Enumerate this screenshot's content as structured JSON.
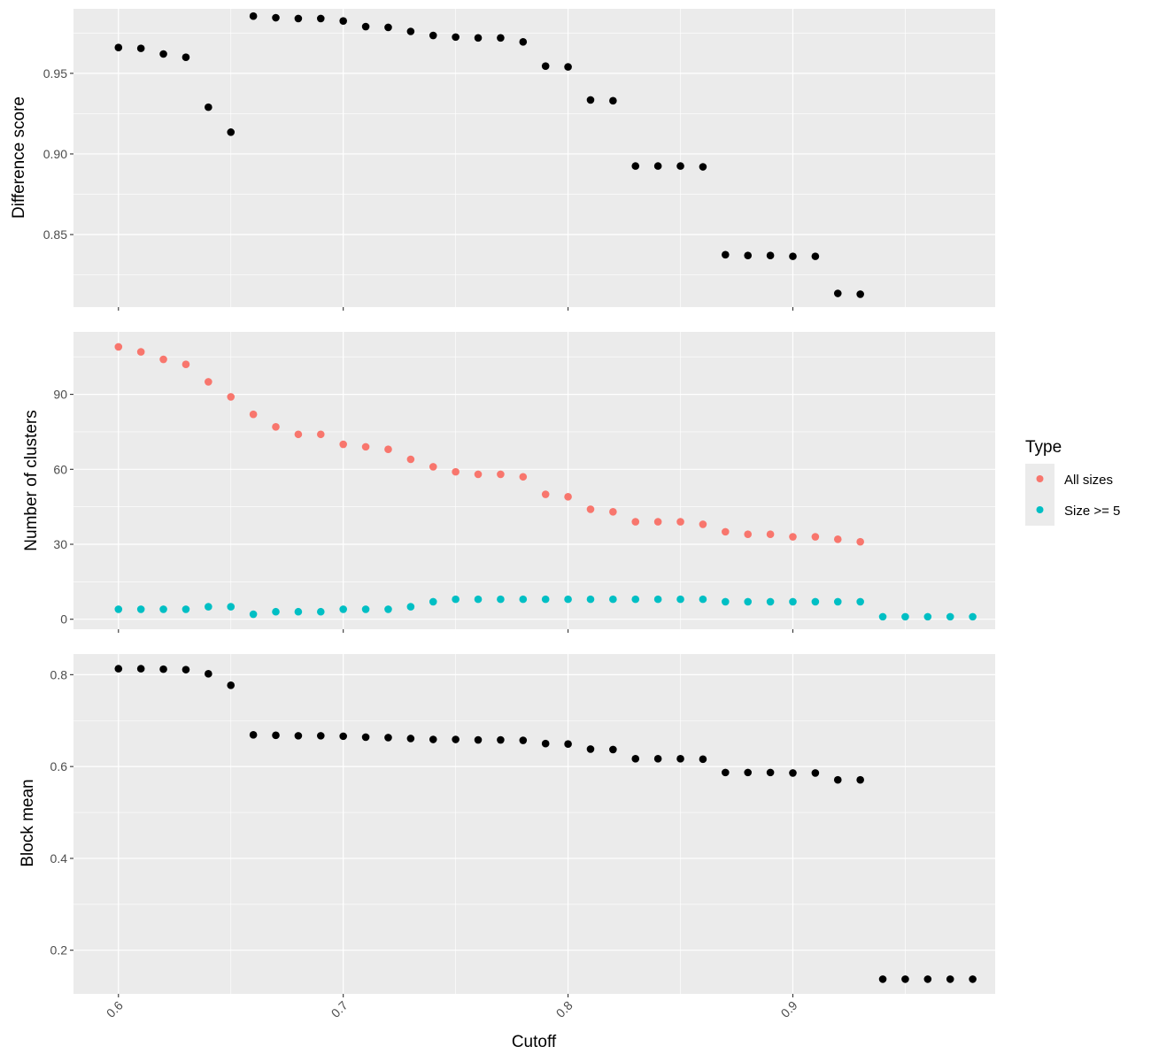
{
  "chart_data": [
    {
      "type": "scatter",
      "title": "",
      "xlabel": "Cutoff",
      "ylabel": "Difference score",
      "xlim": [
        0.58,
        0.99
      ],
      "ylim": [
        0.805,
        0.99
      ],
      "yticks": [
        "0.85",
        "0.90",
        "0.95"
      ],
      "grid": true,
      "series": [
        {
          "color": "#000000",
          "points": [
            [
              0.6,
              0.966
            ],
            [
              0.61,
              0.9655
            ],
            [
              0.62,
              0.962
            ],
            [
              0.63,
              0.96
            ],
            [
              0.64,
              0.929
            ],
            [
              0.65,
              0.9135
            ],
            [
              0.66,
              0.9855
            ],
            [
              0.67,
              0.9845
            ],
            [
              0.68,
              0.984
            ],
            [
              0.69,
              0.984
            ],
            [
              0.7,
              0.9825
            ],
            [
              0.71,
              0.979
            ],
            [
              0.72,
              0.9785
            ],
            [
              0.73,
              0.976
            ],
            [
              0.74,
              0.9735
            ],
            [
              0.75,
              0.9725
            ],
            [
              0.76,
              0.972
            ],
            [
              0.77,
              0.972
            ],
            [
              0.78,
              0.9695
            ],
            [
              0.79,
              0.9545
            ],
            [
              0.8,
              0.954
            ],
            [
              0.81,
              0.9335
            ],
            [
              0.82,
              0.933
            ],
            [
              0.83,
              0.8925
            ],
            [
              0.84,
              0.8925
            ],
            [
              0.85,
              0.8925
            ],
            [
              0.86,
              0.892
            ],
            [
              0.87,
              0.8375
            ],
            [
              0.88,
              0.837
            ],
            [
              0.89,
              0.837
            ],
            [
              0.9,
              0.8365
            ],
            [
              0.91,
              0.8365
            ],
            [
              0.92,
              0.8135
            ],
            [
              0.93,
              0.813
            ]
          ]
        }
      ]
    },
    {
      "type": "scatter",
      "title": "",
      "xlabel": "Cutoff",
      "ylabel": "Number of clusters",
      "xlim": [
        0.58,
        0.99
      ],
      "ylim": [
        -4,
        115
      ],
      "yticks": [
        "0",
        "30",
        "60",
        "90"
      ],
      "grid": true,
      "legend": {
        "title": "Type",
        "position": "right",
        "entries": [
          {
            "label": "All sizes",
            "color": "#F8766D"
          },
          {
            "label": "Size >= 5",
            "color": "#00BFC4"
          }
        ]
      },
      "series": [
        {
          "name": "All sizes",
          "color": "#F8766D",
          "points": [
            [
              0.6,
              109
            ],
            [
              0.61,
              107
            ],
            [
              0.62,
              104
            ],
            [
              0.63,
              102
            ],
            [
              0.64,
              95
            ],
            [
              0.65,
              89
            ],
            [
              0.66,
              82
            ],
            [
              0.67,
              77
            ],
            [
              0.68,
              74
            ],
            [
              0.69,
              74
            ],
            [
              0.7,
              70
            ],
            [
              0.71,
              69
            ],
            [
              0.72,
              68
            ],
            [
              0.73,
              64
            ],
            [
              0.74,
              61
            ],
            [
              0.75,
              59
            ],
            [
              0.76,
              58
            ],
            [
              0.77,
              58
            ],
            [
              0.78,
              57
            ],
            [
              0.79,
              50
            ],
            [
              0.8,
              49
            ],
            [
              0.81,
              44
            ],
            [
              0.82,
              43
            ],
            [
              0.83,
              39
            ],
            [
              0.84,
              39
            ],
            [
              0.85,
              39
            ],
            [
              0.86,
              38
            ],
            [
              0.87,
              35
            ],
            [
              0.88,
              34
            ],
            [
              0.89,
              34
            ],
            [
              0.9,
              33
            ],
            [
              0.91,
              33
            ],
            [
              0.92,
              32
            ],
            [
              0.93,
              31
            ]
          ]
        },
        {
          "name": "Size >= 5",
          "color": "#00BFC4",
          "points": [
            [
              0.6,
              4
            ],
            [
              0.61,
              4
            ],
            [
              0.62,
              4
            ],
            [
              0.63,
              4
            ],
            [
              0.64,
              5
            ],
            [
              0.65,
              5
            ],
            [
              0.66,
              2
            ],
            [
              0.67,
              3
            ],
            [
              0.68,
              3
            ],
            [
              0.69,
              3
            ],
            [
              0.7,
              4
            ],
            [
              0.71,
              4
            ],
            [
              0.72,
              4
            ],
            [
              0.73,
              5
            ],
            [
              0.74,
              7
            ],
            [
              0.75,
              8
            ],
            [
              0.76,
              8
            ],
            [
              0.77,
              8
            ],
            [
              0.78,
              8
            ],
            [
              0.79,
              8
            ],
            [
              0.8,
              8
            ],
            [
              0.81,
              8
            ],
            [
              0.82,
              8
            ],
            [
              0.83,
              8
            ],
            [
              0.84,
              8
            ],
            [
              0.85,
              8
            ],
            [
              0.86,
              8
            ],
            [
              0.87,
              7
            ],
            [
              0.88,
              7
            ],
            [
              0.89,
              7
            ],
            [
              0.9,
              7
            ],
            [
              0.91,
              7
            ],
            [
              0.92,
              7
            ],
            [
              0.93,
              7
            ],
            [
              0.94,
              1
            ],
            [
              0.95,
              1
            ],
            [
              0.96,
              1
            ],
            [
              0.97,
              1
            ],
            [
              0.98,
              1
            ]
          ]
        }
      ]
    },
    {
      "type": "scatter",
      "title": "",
      "xlabel": "Cutoff",
      "ylabel": "Block mean",
      "xlim": [
        0.58,
        0.99
      ],
      "ylim": [
        0.105,
        0.845
      ],
      "yticks": [
        "0.2",
        "0.4",
        "0.6",
        "0.8"
      ],
      "xticks": [
        "0.6",
        "0.7",
        "0.8",
        "0.9"
      ],
      "grid": true,
      "series": [
        {
          "color": "#000000",
          "points": [
            [
              0.6,
              0.813
            ],
            [
              0.61,
              0.813
            ],
            [
              0.62,
              0.812
            ],
            [
              0.63,
              0.811
            ],
            [
              0.64,
              0.802
            ],
            [
              0.65,
              0.777
            ],
            [
              0.66,
              0.669
            ],
            [
              0.67,
              0.668
            ],
            [
              0.68,
              0.667
            ],
            [
              0.69,
              0.667
            ],
            [
              0.7,
              0.666
            ],
            [
              0.71,
              0.664
            ],
            [
              0.72,
              0.663
            ],
            [
              0.73,
              0.661
            ],
            [
              0.74,
              0.659
            ],
            [
              0.75,
              0.659
            ],
            [
              0.76,
              0.658
            ],
            [
              0.77,
              0.658
            ],
            [
              0.78,
              0.657
            ],
            [
              0.79,
              0.65
            ],
            [
              0.8,
              0.649
            ],
            [
              0.81,
              0.638
            ],
            [
              0.82,
              0.637
            ],
            [
              0.83,
              0.617
            ],
            [
              0.84,
              0.617
            ],
            [
              0.85,
              0.617
            ],
            [
              0.86,
              0.616
            ],
            [
              0.87,
              0.587
            ],
            [
              0.88,
              0.587
            ],
            [
              0.89,
              0.587
            ],
            [
              0.9,
              0.586
            ],
            [
              0.91,
              0.586
            ],
            [
              0.92,
              0.571
            ],
            [
              0.93,
              0.571
            ],
            [
              0.94,
              0.137
            ],
            [
              0.95,
              0.137
            ],
            [
              0.96,
              0.137
            ],
            [
              0.97,
              0.137
            ],
            [
              0.98,
              0.137
            ]
          ]
        }
      ]
    }
  ]
}
